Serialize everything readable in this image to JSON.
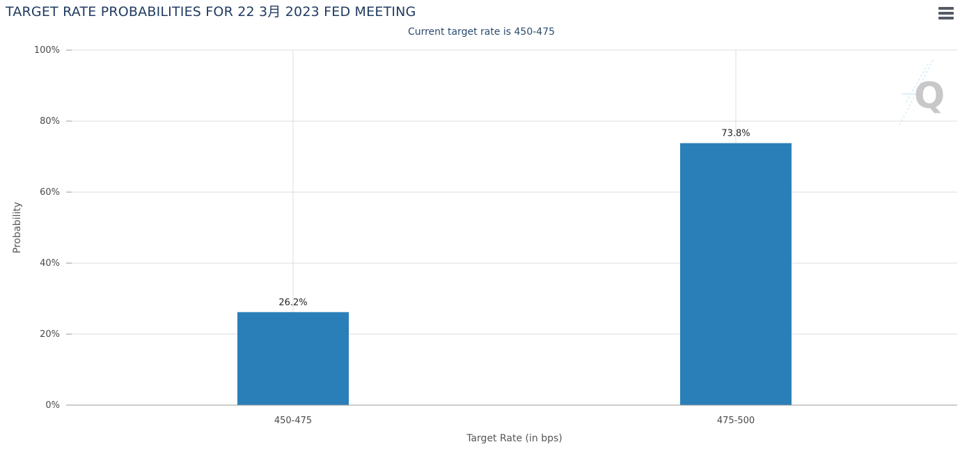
{
  "header": {
    "title": "TARGET RATE PROBABILITIES FOR 22 3月 2023 FED MEETING",
    "subtitle": "Current target rate is 450-475",
    "menu_icon": "hamburger-menu-icon"
  },
  "watermark_icon": "q-logo-icon",
  "colors": {
    "bar": "#2a7fb8",
    "grid": "#dddddd",
    "axis": "#999999",
    "title": "#1f3a5f"
  },
  "chart_data": {
    "type": "bar",
    "title": "TARGET RATE PROBABILITIES FOR 22 3月 2023 FED MEETING",
    "subtitle": "Current target rate is 450-475",
    "xlabel": "Target Rate (in bps)",
    "ylabel": "Probability",
    "categories": [
      "450-475",
      "475-500"
    ],
    "values": [
      26.2,
      73.8
    ],
    "data_labels": [
      "26.2%",
      "73.8%"
    ],
    "ylim": [
      0,
      100
    ],
    "yticks": [
      0,
      20,
      40,
      60,
      80,
      100
    ],
    "ytick_labels": [
      "0%",
      "20%",
      "40%",
      "60%",
      "80%",
      "100%"
    ],
    "grid": true,
    "legend": "none"
  }
}
